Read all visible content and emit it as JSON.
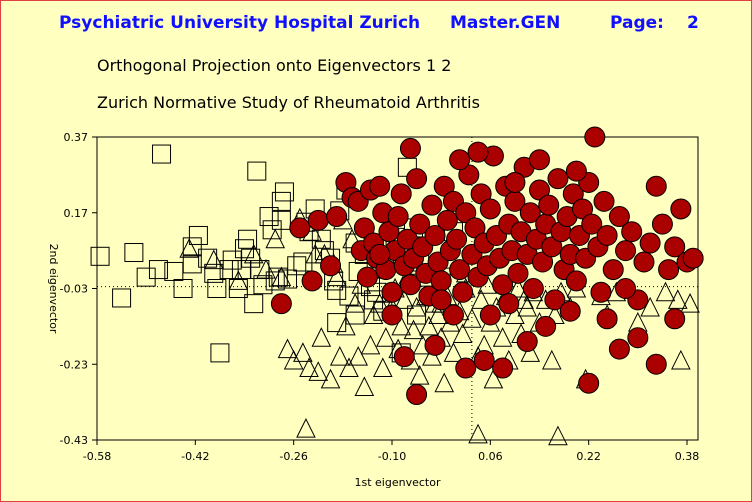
{
  "header": {
    "institution": "Psychiatric University Hospital Zurich",
    "program": "Master.GEN",
    "page_label": "Page:",
    "page_number": "2"
  },
  "chart_data": {
    "type": "scatter",
    "title": "Orthogonal Projection onto Eigenvectors  1 2",
    "subtitle": "Zurich Normative Study of Rheumatoid Arthritis",
    "xlabel": "1st eigenvector",
    "ylabel": "2nd eigenvector",
    "xlim": [
      -0.58,
      0.4
    ],
    "ylim": [
      -0.43,
      0.37
    ],
    "xticks": [
      -0.58,
      -0.42,
      -0.26,
      -0.1,
      0.06,
      0.22,
      0.38
    ],
    "yticks": [
      0.37,
      0.17,
      -0.03,
      -0.23,
      -0.43
    ],
    "xtick_labels": [
      "-0.58",
      "-0.42",
      "-0.26",
      "-0.10",
      "0.06",
      "0.22",
      "0.38"
    ],
    "ytick_labels": [
      "0.37",
      "0.17",
      "-0.03",
      "-0.23",
      "-0.43"
    ],
    "reference_lines": {
      "x": 0.03,
      "y": -0.025
    },
    "colors": {
      "circle_fill": "#aa0000",
      "circle_stroke": "#000000",
      "header_blue": "#1010ff",
      "background": "#ffffc0"
    },
    "series": [
      {
        "marker": "square",
        "points": [
          [
            -0.575,
            0.055
          ],
          [
            -0.54,
            -0.055
          ],
          [
            -0.52,
            0.065
          ],
          [
            -0.5,
            0.0
          ],
          [
            -0.48,
            0.02
          ],
          [
            -0.475,
            0.325
          ],
          [
            -0.455,
            0.015
          ],
          [
            -0.44,
            -0.03
          ],
          [
            -0.425,
            0.035
          ],
          [
            -0.425,
            0.08
          ],
          [
            -0.415,
            0.11
          ],
          [
            -0.4,
            0.05
          ],
          [
            -0.39,
            0.01
          ],
          [
            -0.385,
            -0.03
          ],
          [
            -0.365,
            0.02
          ],
          [
            -0.36,
            0.045
          ],
          [
            -0.35,
            -0.03
          ],
          [
            -0.345,
            0.02
          ],
          [
            -0.34,
            0.075
          ],
          [
            -0.335,
            0.1
          ],
          [
            -0.33,
            0.05
          ],
          [
            -0.325,
            -0.07
          ],
          [
            -0.32,
            0.28
          ],
          [
            -0.315,
            0.02
          ],
          [
            -0.31,
            -0.02
          ],
          [
            -0.3,
            0.16
          ],
          [
            -0.295,
            0.125
          ],
          [
            -0.29,
            -0.01
          ],
          [
            -0.285,
            0.0
          ],
          [
            -0.28,
            0.2
          ],
          [
            -0.28,
            0.15
          ],
          [
            -0.275,
            0.225
          ],
          [
            -0.27,
            -0.005
          ],
          [
            -0.255,
            0.03
          ],
          [
            -0.245,
            0.04
          ],
          [
            -0.24,
            0.145
          ],
          [
            -0.235,
            0.12
          ],
          [
            -0.225,
            0.18
          ],
          [
            -0.215,
            0.1
          ],
          [
            -0.21,
            0.07
          ],
          [
            -0.2,
            0.05
          ],
          [
            -0.195,
            -0.01
          ],
          [
            -0.19,
            -0.035
          ],
          [
            -0.185,
            0.175
          ],
          [
            -0.175,
            0.23
          ],
          [
            -0.17,
            -0.05
          ],
          [
            -0.16,
            0.09
          ],
          [
            -0.155,
            0.015
          ],
          [
            -0.145,
            0.06
          ],
          [
            -0.135,
            -0.025
          ],
          [
            -0.125,
            -0.04
          ],
          [
            -0.115,
            -0.09
          ],
          [
            -0.1,
            0.055
          ],
          [
            -0.095,
            0.105
          ],
          [
            -0.075,
            0.29
          ],
          [
            -0.065,
            0.13
          ],
          [
            -0.055,
            0.04
          ],
          [
            -0.045,
            0.0
          ],
          [
            -0.02,
            0.0
          ],
          [
            0.0,
            0.12
          ],
          [
            -0.19,
            -0.12
          ],
          [
            -0.16,
            -0.1
          ],
          [
            -0.13,
            -0.06
          ],
          [
            -0.085,
            -0.2
          ],
          [
            -0.06,
            -0.1
          ],
          [
            -0.38,
            -0.2
          ]
        ]
      },
      {
        "marker": "triangle",
        "points": [
          [
            -0.43,
            0.075
          ],
          [
            -0.39,
            0.045
          ],
          [
            -0.35,
            -0.01
          ],
          [
            -0.325,
            0.06
          ],
          [
            -0.305,
            0.02
          ],
          [
            -0.29,
            0.1
          ],
          [
            -0.28,
            0.0
          ],
          [
            -0.27,
            -0.19
          ],
          [
            -0.26,
            -0.22
          ],
          [
            -0.25,
            0.155
          ],
          [
            -0.245,
            -0.2
          ],
          [
            -0.235,
            -0.24
          ],
          [
            -0.23,
            0.12
          ],
          [
            -0.225,
            0.06
          ],
          [
            -0.22,
            -0.25
          ],
          [
            -0.215,
            -0.16
          ],
          [
            -0.21,
            0.06
          ],
          [
            -0.2,
            -0.27
          ],
          [
            -0.195,
            0.035
          ],
          [
            -0.19,
            0.0
          ],
          [
            -0.185,
            -0.21
          ],
          [
            -0.18,
            0.15
          ],
          [
            -0.175,
            -0.13
          ],
          [
            -0.17,
            -0.24
          ],
          [
            -0.165,
            0.1
          ],
          [
            -0.16,
            -0.07
          ],
          [
            -0.155,
            -0.21
          ],
          [
            -0.15,
            -0.02
          ],
          [
            -0.145,
            -0.29
          ],
          [
            -0.14,
            0.08
          ],
          [
            -0.135,
            -0.18
          ],
          [
            -0.13,
            -0.1
          ],
          [
            -0.125,
            0.02
          ],
          [
            -0.12,
            -0.07
          ],
          [
            -0.115,
            -0.24
          ],
          [
            -0.11,
            -0.16
          ],
          [
            -0.105,
            0.04
          ],
          [
            -0.1,
            -0.08
          ],
          [
            -0.095,
            -0.03
          ],
          [
            -0.09,
            -0.19
          ],
          [
            -0.085,
            -0.13
          ],
          [
            -0.08,
            -0.06
          ],
          [
            -0.075,
            0.0
          ],
          [
            -0.07,
            -0.22
          ],
          [
            -0.065,
            -0.14
          ],
          [
            -0.06,
            -0.08
          ],
          [
            -0.055,
            -0.26
          ],
          [
            -0.05,
            -0.18
          ],
          [
            -0.045,
            -0.05
          ],
          [
            -0.04,
            -0.13
          ],
          [
            -0.035,
            -0.21
          ],
          [
            -0.03,
            -0.07
          ],
          [
            -0.025,
            -0.1
          ],
          [
            -0.02,
            -0.16
          ],
          [
            -0.015,
            -0.28
          ],
          [
            -0.01,
            -0.05
          ],
          [
            -0.005,
            -0.12
          ],
          [
            0.0,
            -0.2
          ],
          [
            0.01,
            -0.09
          ],
          [
            0.015,
            -0.15
          ],
          [
            0.02,
            -0.03
          ],
          [
            0.03,
            -0.11
          ],
          [
            0.04,
            -0.21
          ],
          [
            0.045,
            -0.06
          ],
          [
            0.05,
            -0.18
          ],
          [
            0.055,
            -0.02
          ],
          [
            0.06,
            -0.12
          ],
          [
            0.065,
            -0.27
          ],
          [
            0.07,
            -0.08
          ],
          [
            0.08,
            -0.16
          ],
          [
            0.085,
            -0.05
          ],
          [
            0.09,
            -0.22
          ],
          [
            0.1,
            -0.1
          ],
          [
            0.105,
            -0.03
          ],
          [
            0.11,
            -0.15
          ],
          [
            0.12,
            -0.08
          ],
          [
            0.125,
            -0.2
          ],
          [
            0.13,
            -0.04
          ],
          [
            0.14,
            -0.12
          ],
          [
            0.15,
            -0.06
          ],
          [
            0.16,
            -0.22
          ],
          [
            0.165,
            -0.1
          ],
          [
            0.175,
            -0.04
          ],
          [
            0.19,
            -0.08
          ],
          [
            0.2,
            -0.03
          ],
          [
            0.215,
            -0.27
          ],
          [
            0.24,
            -0.05
          ],
          [
            0.25,
            -0.1
          ],
          [
            0.265,
            -0.04
          ],
          [
            0.3,
            -0.12
          ],
          [
            0.32,
            -0.08
          ],
          [
            0.345,
            -0.04
          ],
          [
            0.365,
            -0.06
          ],
          [
            0.385,
            -0.07
          ],
          [
            0.37,
            -0.22
          ],
          [
            0.04,
            -0.415
          ],
          [
            -0.24,
            -0.4
          ],
          [
            0.17,
            -0.42
          ],
          [
            0.115,
            -0.06
          ],
          [
            -0.02,
            -0.07
          ],
          [
            0.02,
            0.01
          ],
          [
            -0.06,
            0.03
          ]
        ]
      },
      {
        "marker": "circle",
        "points": [
          [
            -0.25,
            0.13
          ],
          [
            -0.23,
            -0.01
          ],
          [
            -0.22,
            0.15
          ],
          [
            -0.2,
            0.03
          ],
          [
            -0.19,
            0.16
          ],
          [
            -0.175,
            0.25
          ],
          [
            -0.165,
            0.21
          ],
          [
            -0.155,
            0.2
          ],
          [
            -0.15,
            0.07
          ],
          [
            -0.145,
            0.13
          ],
          [
            -0.14,
            0.0
          ],
          [
            -0.135,
            0.23
          ],
          [
            -0.13,
            0.09
          ],
          [
            -0.125,
            0.05
          ],
          [
            -0.12,
            0.24
          ],
          [
            -0.115,
            0.17
          ],
          [
            -0.11,
            0.02
          ],
          [
            -0.105,
            0.12
          ],
          [
            -0.1,
            -0.04
          ],
          [
            -0.095,
            0.07
          ],
          [
            -0.09,
            0.16
          ],
          [
            -0.085,
            0.22
          ],
          [
            -0.08,
            0.03
          ],
          [
            -0.075,
            0.1
          ],
          [
            -0.07,
            -0.02
          ],
          [
            -0.065,
            0.05
          ],
          [
            -0.06,
            0.26
          ],
          [
            -0.055,
            0.14
          ],
          [
            -0.05,
            0.08
          ],
          [
            -0.045,
            0.01
          ],
          [
            -0.04,
            -0.05
          ],
          [
            -0.035,
            0.19
          ],
          [
            -0.03,
            0.11
          ],
          [
            -0.025,
            0.04
          ],
          [
            -0.02,
            -0.01
          ],
          [
            -0.015,
            0.24
          ],
          [
            -0.01,
            0.15
          ],
          [
            -0.005,
            0.07
          ],
          [
            0.0,
            0.2
          ],
          [
            0.005,
            0.1
          ],
          [
            0.01,
            0.02
          ],
          [
            0.015,
            -0.04
          ],
          [
            0.02,
            0.17
          ],
          [
            0.025,
            0.27
          ],
          [
            0.03,
            0.06
          ],
          [
            0.035,
            0.13
          ],
          [
            0.04,
            0.0
          ],
          [
            0.045,
            0.22
          ],
          [
            0.05,
            0.09
          ],
          [
            0.055,
            0.03
          ],
          [
            0.06,
            0.18
          ],
          [
            0.065,
            0.32
          ],
          [
            0.07,
            0.11
          ],
          [
            0.075,
            0.05
          ],
          [
            0.08,
            -0.02
          ],
          [
            0.085,
            0.24
          ],
          [
            0.09,
            0.14
          ],
          [
            0.095,
            0.07
          ],
          [
            0.1,
            0.2
          ],
          [
            0.105,
            0.01
          ],
          [
            0.11,
            0.12
          ],
          [
            0.115,
            0.29
          ],
          [
            0.12,
            0.06
          ],
          [
            0.125,
            0.17
          ],
          [
            0.13,
            -0.03
          ],
          [
            0.135,
            0.1
          ],
          [
            0.14,
            0.23
          ],
          [
            0.145,
            0.04
          ],
          [
            0.15,
            0.14
          ],
          [
            0.155,
            0.19
          ],
          [
            0.16,
            0.08
          ],
          [
            0.165,
            -0.06
          ],
          [
            0.17,
            0.26
          ],
          [
            0.175,
            0.12
          ],
          [
            0.18,
            0.02
          ],
          [
            0.185,
            0.16
          ],
          [
            0.19,
            0.06
          ],
          [
            0.195,
            0.22
          ],
          [
            0.2,
            -0.01
          ],
          [
            0.205,
            0.11
          ],
          [
            0.21,
            0.18
          ],
          [
            0.215,
            0.05
          ],
          [
            0.22,
            0.25
          ],
          [
            0.225,
            0.14
          ],
          [
            0.23,
            0.37
          ],
          [
            0.235,
            0.08
          ],
          [
            0.24,
            -0.04
          ],
          [
            0.245,
            0.2
          ],
          [
            0.25,
            0.11
          ],
          [
            0.26,
            0.02
          ],
          [
            0.27,
            0.16
          ],
          [
            0.28,
            0.07
          ],
          [
            0.29,
            0.12
          ],
          [
            0.3,
            -0.06
          ],
          [
            0.31,
            0.04
          ],
          [
            0.32,
            0.09
          ],
          [
            0.33,
            0.24
          ],
          [
            0.34,
            0.14
          ],
          [
            0.35,
            0.02
          ],
          [
            0.36,
            0.08
          ],
          [
            0.37,
            0.18
          ],
          [
            0.38,
            0.04
          ],
          [
            0.39,
            0.05
          ],
          [
            -0.08,
            -0.21
          ],
          [
            -0.06,
            -0.31
          ],
          [
            -0.03,
            -0.18
          ],
          [
            0.02,
            -0.24
          ],
          [
            0.05,
            -0.22
          ],
          [
            0.08,
            -0.24
          ],
          [
            0.12,
            -0.17
          ],
          [
            0.22,
            -0.28
          ],
          [
            0.27,
            -0.19
          ],
          [
            0.3,
            -0.16
          ],
          [
            0.33,
            -0.23
          ],
          [
            -0.28,
            -0.07
          ],
          [
            -0.07,
            0.34
          ],
          [
            0.01,
            0.31
          ],
          [
            0.1,
            0.25
          ],
          [
            0.2,
            0.28
          ],
          [
            0.0,
            -0.1
          ],
          [
            0.06,
            -0.1
          ],
          [
            0.15,
            -0.13
          ],
          [
            0.25,
            -0.11
          ],
          [
            -0.1,
            -0.1
          ],
          [
            -0.02,
            -0.06
          ],
          [
            0.09,
            -0.07
          ],
          [
            0.19,
            -0.09
          ],
          [
            0.28,
            -0.03
          ],
          [
            0.36,
            -0.11
          ],
          [
            0.14,
            0.31
          ],
          [
            0.04,
            0.33
          ],
          [
            -0.12,
            0.06
          ]
        ]
      }
    ]
  }
}
